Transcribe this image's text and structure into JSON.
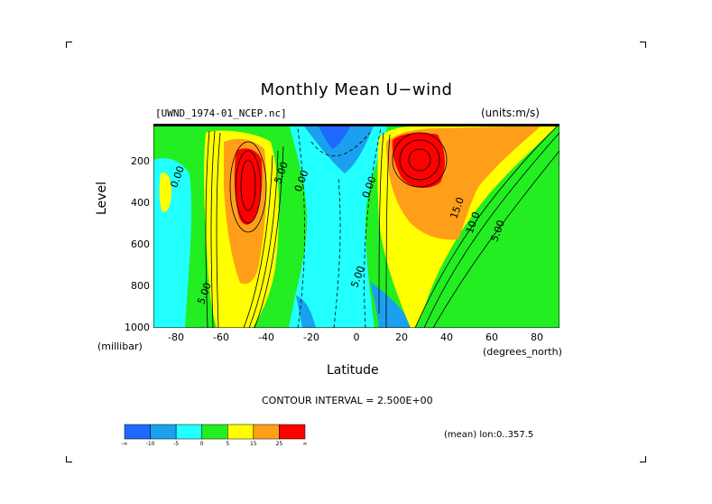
{
  "chart_data": {
    "type": "heatmap",
    "title": "Monthly Mean U−wind",
    "dataset": "[UWND_1974-01_NCEP.nc]",
    "units": "(units:m/s)",
    "xlabel": "Latitude",
    "xunit": "(degrees_north)",
    "ylabel": "Level",
    "yunit": "(millibar)",
    "xlim": [
      -90,
      90
    ],
    "ylim": [
      1000,
      10
    ],
    "y_reversed": true,
    "x_ticks": [
      "-80",
      "-60",
      "-40",
      "-20",
      "0",
      "20",
      "40",
      "60",
      "80"
    ],
    "y_ticks": [
      "200",
      "400",
      "600",
      "800",
      "1000"
    ],
    "contour_interval": "CONTOUR INTERVAL = 2.500E+00",
    "region_note": "(mean) lon:0..357.5",
    "legend": {
      "levels": [
        "-∞",
        "-10",
        "-5",
        "0",
        "5",
        "15",
        "25",
        "∞"
      ],
      "colors": [
        "#1e6aff",
        "#1aa0ee",
        "#22ffff",
        "#22ee22",
        "#ffff00",
        "#ff9f19",
        "#ff0000"
      ]
    },
    "contour_labels": [
      {
        "text": "0.00",
        "lat": -78,
        "level": 280
      },
      {
        "text": "5.00",
        "lat": -66,
        "level": 840
      },
      {
        "text": "5.00",
        "lat": -32,
        "level": 260
      },
      {
        "text": "0.00",
        "lat": -23,
        "level": 300
      },
      {
        "text": "0.00",
        "lat": 7,
        "level": 330
      },
      {
        "text": "5.00",
        "lat": 2,
        "level": 760
      },
      {
        "text": "15.0",
        "lat": 46,
        "level": 430
      },
      {
        "text": "10.0",
        "lat": 53,
        "level": 500
      },
      {
        "text": "5.00",
        "lat": 64,
        "level": 540
      }
    ]
  }
}
